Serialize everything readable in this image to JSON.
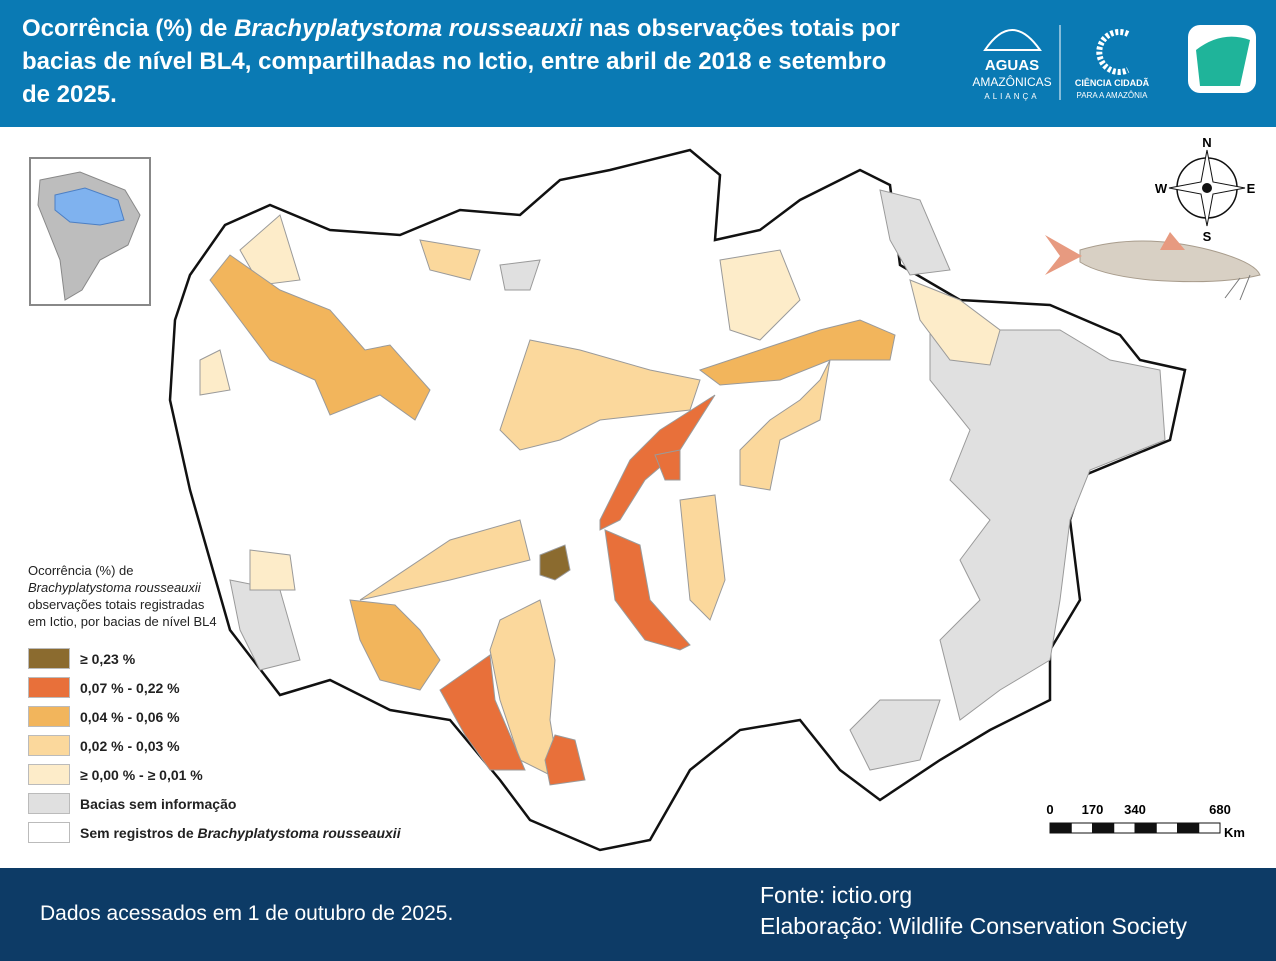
{
  "header": {
    "title": [
      "Ocorrência (%) de ",
      "Brachyplatystoma rousseauxii",
      " nas observações totais por bacias de nível BL4, compartilhadas no Ictio, entre abril de 2018 e setembro de 2025."
    ],
    "logos": {
      "aguas": "AGUAS",
      "amazonicas": "AMAZÔNICAS",
      "alianca": "ALIANÇA",
      "ciencia": "CIÊNCIA CIDADÃ",
      "para": "PARA A AMAZÔNIA"
    }
  },
  "map": {
    "compass": {
      "n": "N",
      "w": "W",
      "e": "E",
      "s": "S"
    },
    "legend": {
      "title": [
        "Ocorrência (%) de",
        "Brachyplatystoma rousseauxii",
        "observações totais registradas",
        "em Ictio, por bacias de nível BL4"
      ],
      "items": [
        {
          "label": "≥ 0,23 %",
          "color": "#8b6b2f"
        },
        {
          "label": "0,07 % - 0,22 %",
          "color": "#e8703a"
        },
        {
          "label": "0,04 % - 0,06 %",
          "color": "#f2b55c"
        },
        {
          "label": "0,02 % - 0,03 %",
          "color": "#fbd89c"
        },
        {
          "label": "≥ 0,00 % - ≥ 0,01 %",
          "color": "#fdecc9"
        },
        {
          "label": "Bacias sem informação",
          "color": "#e0e0e0"
        },
        {
          "label": [
            "Sem registros de ",
            "Brachyplatystoma rousseauxii"
          ],
          "color": "#ffffff"
        }
      ]
    },
    "scale_bar": {
      "labels": [
        0,
        170,
        340,
        680
      ],
      "unit": "Km"
    }
  },
  "footer": {
    "accessed": "Dados acessados em 1 de outubro de 2025.",
    "source": "Fonte: ictio.org",
    "credit": "Elaboração: Wildlife Conservation Society"
  }
}
